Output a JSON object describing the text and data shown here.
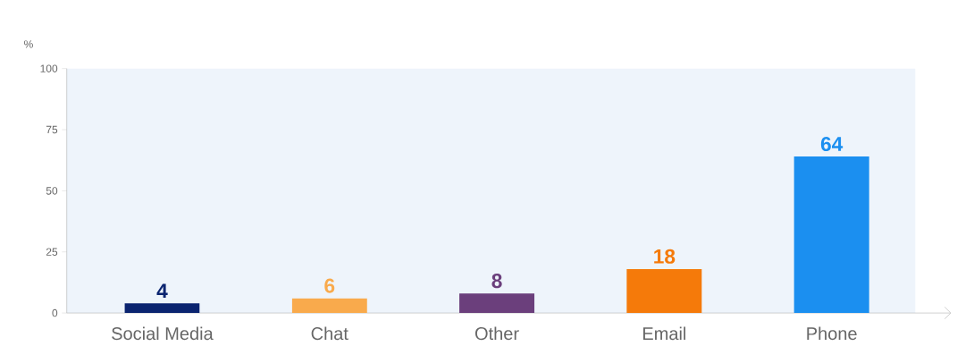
{
  "chart_data": {
    "type": "bar",
    "ylabel": "%",
    "categories": [
      "Social Media",
      "Chat",
      "Other",
      "Email",
      "Phone"
    ],
    "values": [
      4,
      6,
      8,
      18,
      64
    ],
    "colors": [
      "#0b2470",
      "#f9aa4c",
      "#6b3f7c",
      "#f57a0a",
      "#1b8ff0"
    ],
    "ylim": [
      0,
      100
    ],
    "yticks": [
      0,
      25,
      50,
      75,
      100
    ],
    "data_labels": true
  }
}
